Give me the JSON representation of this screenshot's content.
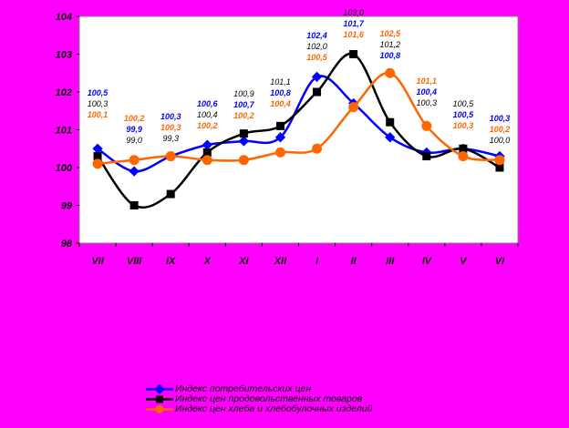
{
  "chart_data": {
    "type": "line",
    "categories": [
      "VII",
      "VIII",
      "IX",
      "X",
      "XI",
      "XII",
      "I",
      "II",
      "III",
      "IV",
      "V",
      "VI"
    ],
    "ylim": [
      98,
      104
    ],
    "yticks": [
      "98",
      "99",
      "100",
      "101",
      "102",
      "103",
      "104"
    ],
    "series": [
      {
        "name": "Индекс потребительских цен",
        "color": "#0000FF",
        "marker": "diamond",
        "values": [
          100.5,
          99.9,
          100.3,
          100.6,
          100.7,
          100.8,
          102.4,
          101.7,
          100.8,
          100.4,
          100.5,
          100.3
        ],
        "labels": [
          "100,5",
          "99,9",
          "100,3",
          "100,6",
          "100,7",
          "100,8",
          "102,4",
          "101,7",
          "100,8",
          "100,4",
          "100,5",
          "100,3"
        ]
      },
      {
        "name": "Индекс цен продовольственных товаров",
        "color": "#000000",
        "marker": "square",
        "values": [
          100.3,
          99.0,
          99.3,
          100.4,
          100.9,
          101.1,
          102.0,
          103.0,
          101.2,
          100.3,
          100.5,
          100.0
        ],
        "labels": [
          "100,3",
          "99,0",
          "99,3",
          "100,4",
          "100,9",
          "101,1",
          "102,0",
          "103,0",
          "101,2",
          "100,3",
          "100,5",
          "100,0"
        ]
      },
      {
        "name": "Индекс цен хлеба и хлебобулочных изделий",
        "color": "#FF6600",
        "marker": "circle",
        "values": [
          100.1,
          100.2,
          100.3,
          100.2,
          100.2,
          100.4,
          100.5,
          101.6,
          102.5,
          101.1,
          100.3,
          100.2
        ],
        "labels": [
          "100,1",
          "100,2",
          "100,3",
          "100,2",
          "100,2",
          "100,4",
          "100,5",
          "101,6",
          "102,5",
          "101,1",
          "100,3",
          "100,2"
        ]
      }
    ],
    "legend": "bottom",
    "grid": false
  }
}
